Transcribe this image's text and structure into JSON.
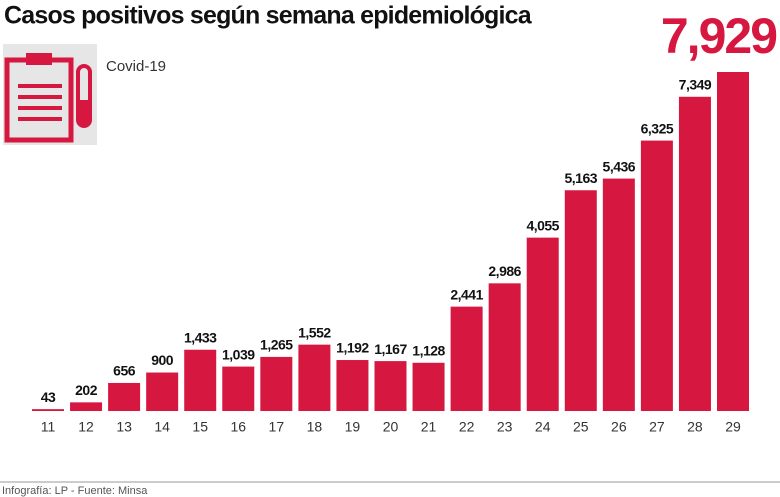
{
  "chart_data": {
    "type": "bar",
    "title": "Casos positivos según semana epidemiológica",
    "subtitle": "Covid-19",
    "categories": [
      "11",
      "12",
      "13",
      "14",
      "15",
      "16",
      "17",
      "18",
      "19",
      "20",
      "21",
      "22",
      "23",
      "24",
      "25",
      "26",
      "27",
      "28",
      "29"
    ],
    "values": [
      43,
      202,
      656,
      900,
      1433,
      1039,
      1265,
      1552,
      1192,
      1167,
      1128,
      2441,
      2986,
      4055,
      5163,
      5436,
      6325,
      7349,
      7929
    ],
    "value_labels": [
      "43",
      "202",
      "656",
      "900",
      "1,433",
      "1,039",
      "1,265",
      "1,552",
      "1,192",
      "1,167",
      "1,128",
      "2,441",
      "2,986",
      "4,055",
      "5,163",
      "5,436",
      "6,325",
      "7,349",
      "7,929"
    ],
    "color": "#d6173f",
    "ylim": [
      0,
      7929
    ],
    "source": "Infografía: LP - Fuente: Minsa"
  }
}
